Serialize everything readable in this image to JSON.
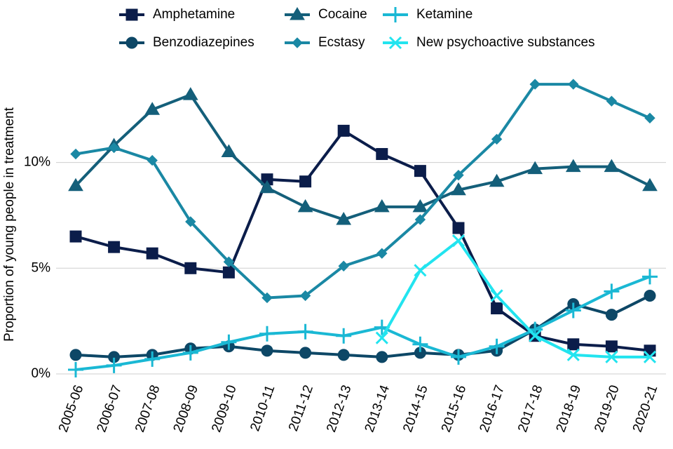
{
  "chart_data": {
    "type": "line",
    "y_label": "Proportion of young people in treatment",
    "categories": [
      "2005-06",
      "2006-07",
      "2007-08",
      "2008-09",
      "2009-10",
      "2010-11",
      "2011-12",
      "2012-13",
      "2013-14",
      "2014-15",
      "2015-16",
      "2016-17",
      "2017-18",
      "2018-19",
      "2019-20",
      "2020-21"
    ],
    "series": [
      {
        "name": "Amphetamine",
        "color": "#0b1d4a",
        "marker": "square",
        "values": [
          6.5,
          6.0,
          5.7,
          5.0,
          4.8,
          9.2,
          9.1,
          11.5,
          10.4,
          9.6,
          6.9,
          3.1,
          1.8,
          1.4,
          1.3,
          1.1
        ]
      },
      {
        "name": "Benzodiazepines",
        "color": "#0d4766",
        "marker": "circle",
        "values": [
          0.9,
          0.8,
          0.9,
          1.2,
          1.3,
          1.1,
          1.0,
          0.9,
          0.8,
          1.0,
          0.9,
          1.1,
          2.1,
          3.3,
          2.8,
          3.7
        ]
      },
      {
        "name": "Cocaine",
        "color": "#145f7a",
        "marker": "triangle",
        "values": [
          8.9,
          10.8,
          12.5,
          13.2,
          10.5,
          8.8,
          7.9,
          7.3,
          7.9,
          7.9,
          8.7,
          9.1,
          9.7,
          9.8,
          9.8,
          8.9
        ]
      },
      {
        "name": "Ecstasy",
        "color": "#1a88a4",
        "marker": "diamond",
        "values": [
          10.4,
          10.7,
          10.1,
          7.2,
          5.3,
          3.6,
          3.7,
          5.1,
          5.7,
          7.3,
          9.4,
          11.1,
          13.7,
          13.7,
          12.9,
          12.1
        ]
      },
      {
        "name": "Ketamine",
        "color": "#1ab8d4",
        "marker": "plus",
        "values": [
          0.2,
          0.4,
          0.7,
          1.0,
          1.5,
          1.9,
          2.0,
          1.8,
          2.2,
          1.4,
          0.8,
          1.3,
          2.1,
          3.0,
          3.9,
          4.6
        ]
      },
      {
        "name": "New psychoactive substances",
        "color": "#22e4ef",
        "marker": "cross",
        "values": [
          null,
          null,
          null,
          null,
          null,
          null,
          null,
          null,
          1.7,
          4.9,
          6.3,
          3.7,
          1.8,
          0.9,
          0.8,
          0.8
        ]
      }
    ],
    "ylim": [
      -0.2,
      14.2
    ],
    "yticks": [
      {
        "value": 0,
        "label": "0%"
      },
      {
        "value": 5,
        "label": "5%"
      },
      {
        "value": 10,
        "label": "10%"
      }
    ],
    "grid": true,
    "legend": "top"
  }
}
